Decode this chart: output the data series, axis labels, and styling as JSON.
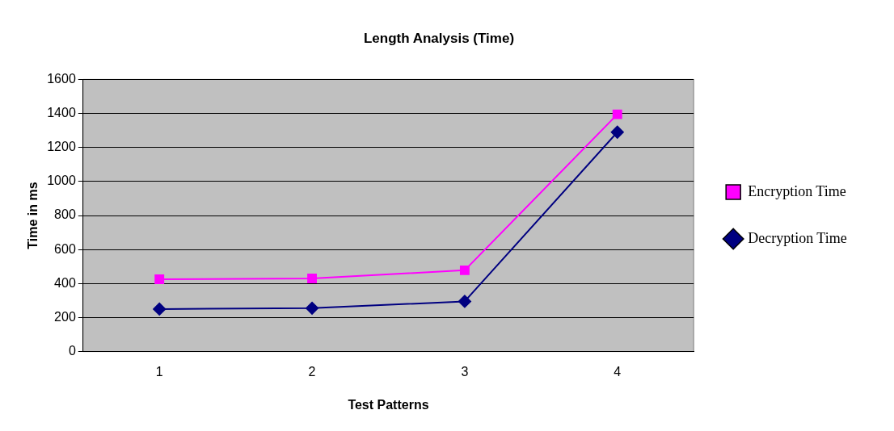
{
  "chart_data": {
    "type": "line",
    "title": "Length Analysis (Time)",
    "xlabel": "Test Patterns",
    "ylabel": "Time in ms",
    "categories": [
      "1",
      "2",
      "3",
      "4"
    ],
    "series": [
      {
        "name": "Encryption Time",
        "color": "#ff00ff",
        "marker": "square",
        "values": [
          425,
          430,
          478,
          1395
        ]
      },
      {
        "name": "Decryption Time",
        "color": "#000080",
        "marker": "diamond",
        "values": [
          250,
          255,
          295,
          1290
        ]
      }
    ],
    "ylim": [
      0,
      1600
    ],
    "yticks": [
      0,
      200,
      400,
      600,
      800,
      1000,
      1200,
      1400,
      1600
    ],
    "grid": "y",
    "legend": "right"
  }
}
